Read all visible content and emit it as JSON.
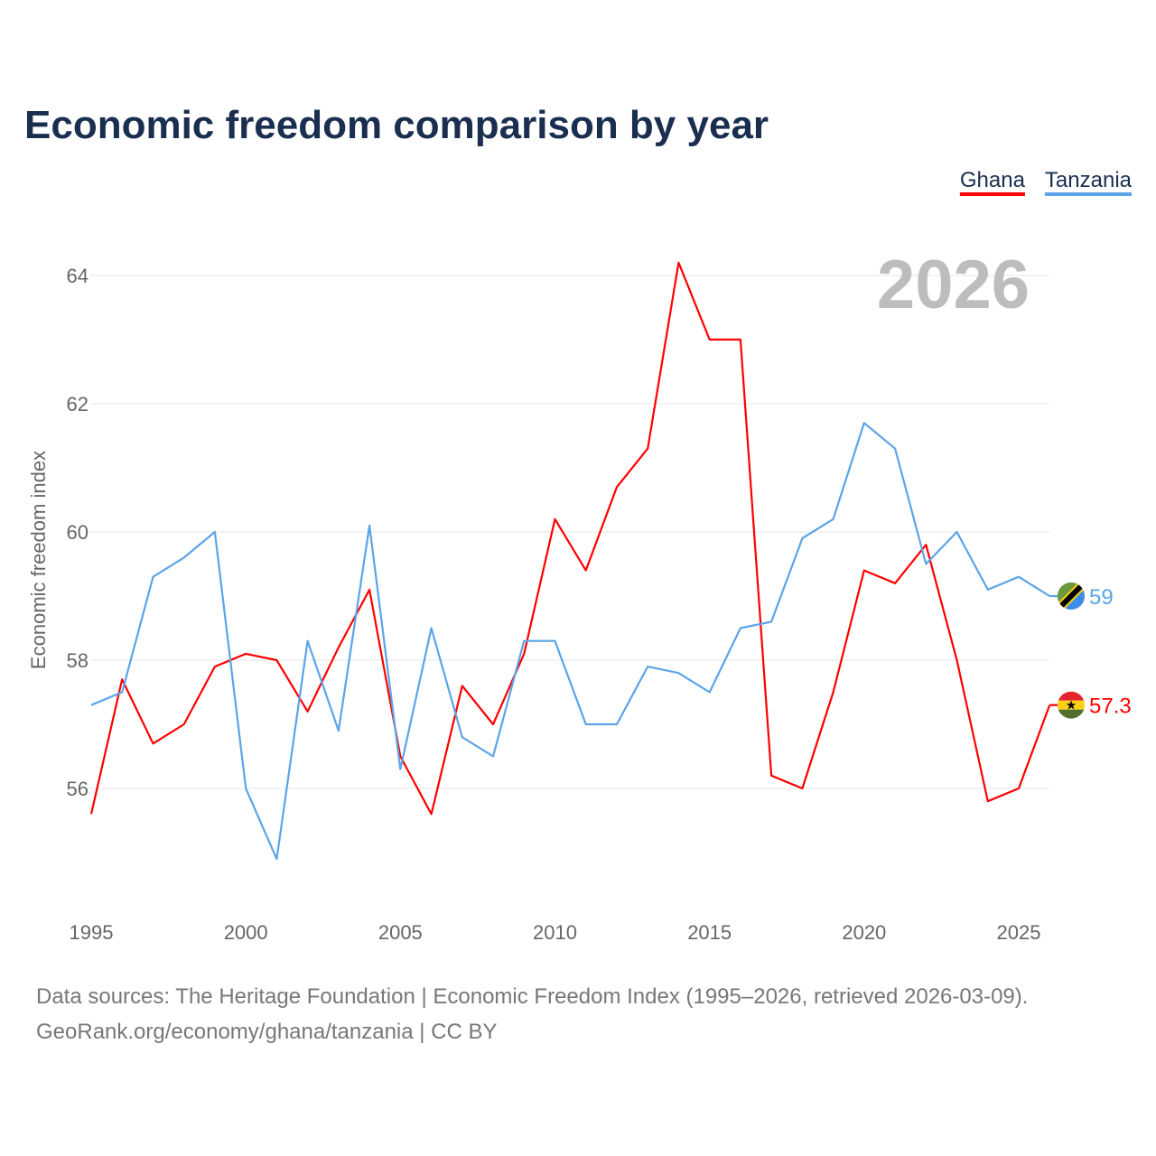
{
  "chart_data": {
    "type": "line",
    "title": "Economic freedom comparison by year",
    "xlabel": "",
    "ylabel": "Economic freedom index",
    "year_label": "2026",
    "xlim": [
      1995,
      2026
    ],
    "ylim": [
      54.2,
      64.6
    ],
    "x_ticks": [
      1995,
      2000,
      2005,
      2010,
      2015,
      2020,
      2025
    ],
    "y_ticks": [
      56,
      58,
      60,
      62,
      64
    ],
    "grid": true,
    "legend_position": "top-right",
    "x": [
      1995,
      1996,
      1997,
      1998,
      1999,
      2000,
      2001,
      2002,
      2003,
      2004,
      2005,
      2006,
      2007,
      2008,
      2009,
      2010,
      2011,
      2012,
      2013,
      2014,
      2015,
      2016,
      2017,
      2018,
      2019,
      2020,
      2021,
      2022,
      2023,
      2024,
      2025,
      2026
    ],
    "series": [
      {
        "name": "Ghana",
        "color": "#ff0000",
        "end_label": "57.3",
        "values": [
          55.6,
          57.7,
          56.7,
          57.0,
          57.9,
          58.1,
          58.0,
          57.2,
          58.2,
          59.1,
          56.5,
          55.6,
          57.6,
          57.0,
          58.1,
          60.2,
          59.4,
          60.7,
          61.3,
          64.2,
          63.0,
          63.0,
          56.2,
          56.0,
          57.5,
          59.4,
          59.2,
          59.8,
          58.0,
          55.8,
          56.0,
          57.3
        ]
      },
      {
        "name": "Tanzania",
        "color": "#5ba4e8",
        "end_label": "59",
        "values": [
          57.3,
          57.5,
          59.3,
          59.6,
          60.0,
          56.0,
          54.9,
          58.3,
          56.9,
          60.1,
          56.3,
          58.5,
          56.8,
          56.5,
          58.3,
          58.3,
          57.0,
          57.0,
          57.9,
          57.8,
          57.5,
          58.5,
          58.6,
          59.9,
          60.2,
          61.7,
          61.3,
          59.5,
          60.0,
          59.1,
          59.3,
          59.0
        ]
      }
    ],
    "source_lines": [
      "Data sources: The Heritage Foundation | Economic Freedom Index (1995–2026, retrieved 2026-03-09).",
      "GeoRank.org/economy/ghana/tanzania | CC BY"
    ]
  }
}
